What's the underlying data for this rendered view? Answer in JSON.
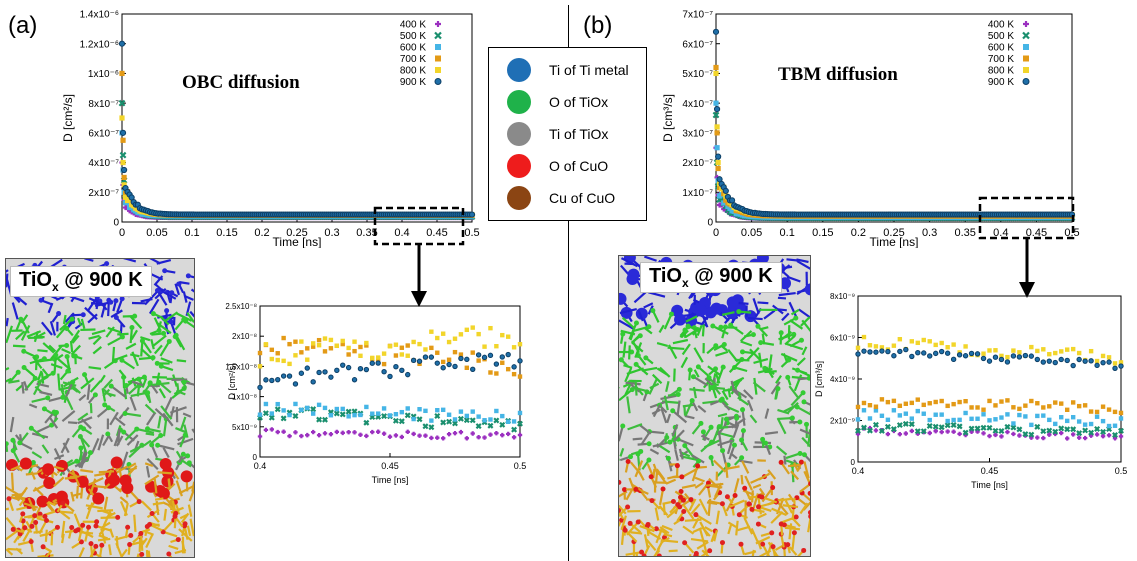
{
  "panels": {
    "a_label": "(a)",
    "b_label": "(b)"
  },
  "snapshots": {
    "a": {
      "label_main": "TiO",
      "label_sub": "x",
      "label_rest": " @ 900 K"
    },
    "b": {
      "label_main": "TiO",
      "label_sub": "x",
      "label_rest": " @ 900 K"
    }
  },
  "atom_legend": [
    {
      "label": "Ti of Ti metal",
      "color": "#1f6fb5"
    },
    {
      "label": "O of TiOx",
      "color": "#1fb24a"
    },
    {
      "label": "Ti of TiOx",
      "color": "#8a8a8a"
    },
    {
      "label": "O of CuO",
      "color": "#ee1c1c"
    },
    {
      "label": "Cu of CuO",
      "color": "#8b4513"
    }
  ],
  "series_styles": [
    {
      "name": "400 K",
      "color": "#9b30c0",
      "marker": "plus"
    },
    {
      "name": "500 K",
      "color": "#1a8f6e",
      "marker": "x"
    },
    {
      "name": "600 K",
      "color": "#45b5e6",
      "marker": "square"
    },
    {
      "name": "700 K",
      "color": "#e39a16",
      "marker": "square"
    },
    {
      "name": "800 K",
      "color": "#f2d52a",
      "marker": "square"
    },
    {
      "name": "900 K",
      "color": "#1f6fa8",
      "marker": "circle"
    }
  ],
  "chart_data": [
    {
      "id": "obc-main",
      "type": "scatter",
      "title": "OBC diffusion",
      "xlabel": "Time [ns]",
      "ylabel": "D [cm²/s]",
      "xlim": [
        0,
        0.5
      ],
      "ylim": [
        0,
        1.4e-06
      ],
      "xticks": [
        "0",
        "0.05",
        "0.1",
        "0.15",
        "0.2",
        "0.25",
        "0.3",
        "0.35",
        "0.4",
        "0.45",
        "0.5"
      ],
      "yticks": [
        "0",
        "2x10⁻⁷",
        "4x10⁻⁷",
        "6x10⁻⁷",
        "8x10⁻⁷",
        "1x10⁻⁶",
        "1.2x10⁻⁶",
        "1.4x10⁻⁶"
      ],
      "series": [
        {
          "name": "400 K",
          "initial": [
            4e-07,
            2.5e-07,
            1.5e-07
          ],
          "decay": 0.012,
          "plateau": 3e-08
        },
        {
          "name": "500 K",
          "initial": [
            8e-07,
            4.5e-07,
            2.8e-07
          ],
          "decay": 0.012,
          "plateau": 3.5e-08
        },
        {
          "name": "600 K",
          "initial": [
            6e-07,
            3.5e-07,
            2e-07
          ],
          "decay": 0.012,
          "plateau": 4e-08
        },
        {
          "name": "700 K",
          "initial": [
            1e-06,
            5.5e-07,
            3e-07
          ],
          "decay": 0.013,
          "plateau": 4.5e-08
        },
        {
          "name": "800 K",
          "initial": [
            7e-07,
            4e-07,
            2.5e-07
          ],
          "decay": 0.013,
          "plateau": 5e-08
        },
        {
          "name": "900 K",
          "initial": [
            1.2e-06,
            6e-07,
            3.5e-07
          ],
          "decay": 0.014,
          "plateau": 5e-08
        }
      ]
    },
    {
      "id": "tbm-main",
      "type": "scatter",
      "title": "TBM diffusion",
      "xlabel": "Time [ns]",
      "ylabel": "D [cm³/s]",
      "xlim": [
        0,
        0.5
      ],
      "ylim": [
        0,
        7e-07
      ],
      "xticks": [
        "0",
        "0.05",
        "0.1",
        "0.15",
        "0.2",
        "0.25",
        "0.3",
        "0.35",
        "0.4",
        "0.45",
        "0.5"
      ],
      "yticks": [
        "0",
        "1x10⁻⁷",
        "2x10⁻⁷",
        "3x10⁻⁷",
        "4x10⁻⁷",
        "5x10⁻⁷",
        "6x10⁻⁷",
        "7x10⁻⁷"
      ],
      "series": [
        {
          "name": "400 K",
          "initial": [
            2.5e-07,
            1.5e-07,
            9e-08
          ],
          "decay": 0.013,
          "plateau": 1.2e-08
        },
        {
          "name": "500 K",
          "initial": [
            3.6e-07,
            2e-07,
            1.2e-07
          ],
          "decay": 0.013,
          "plateau": 1.4e-08
        },
        {
          "name": "600 K",
          "initial": [
            4e-07,
            2.5e-07,
            1.4e-07
          ],
          "decay": 0.013,
          "plateau": 1.6e-08
        },
        {
          "name": "700 K",
          "initial": [
            5.2e-07,
            3e-07,
            1.8e-07
          ],
          "decay": 0.014,
          "plateau": 2e-08
        },
        {
          "name": "800 K",
          "initial": [
            5e-07,
            3.2e-07,
            2e-07
          ],
          "decay": 0.014,
          "plateau": 2.5e-08
        },
        {
          "name": "900 K",
          "initial": [
            6.4e-07,
            3.8e-07,
            2.2e-07
          ],
          "decay": 0.015,
          "plateau": 2.5e-08
        }
      ]
    },
    {
      "id": "obc-zoom",
      "type": "scatter",
      "xlabel": "Time [ns]",
      "ylabel": "D [cm²/s]",
      "xlim": [
        0.4,
        0.5
      ],
      "ylim": [
        0,
        2.5e-08
      ],
      "xticks": [
        "0.4",
        "0.45",
        "0.5"
      ],
      "yticks": [
        "0",
        "5x10⁻⁹",
        "1x10⁻⁸",
        "1.5x10⁻⁸",
        "2x10⁻⁸",
        "2.5x10⁻⁸"
      ],
      "series": [
        {
          "name": "400 K",
          "start": 4e-09,
          "end": 3.5e-09,
          "noise": 6e-10
        },
        {
          "name": "500 K",
          "start": 7.5e-09,
          "end": 5e-09,
          "noise": 1e-09
        },
        {
          "name": "600 K",
          "start": 8e-09,
          "end": 6.5e-09,
          "noise": 1e-09
        },
        {
          "name": "700 K",
          "start": 1.9e-08,
          "end": 1.5e-08,
          "noise": 1.8e-09
        },
        {
          "name": "800 K",
          "start": 1.7e-08,
          "end": 2e-08,
          "noise": 2e-09
        },
        {
          "name": "900 K",
          "start": 1.3e-08,
          "end": 1.65e-08,
          "noise": 1.5e-09
        }
      ]
    },
    {
      "id": "tbm-zoom",
      "type": "scatter",
      "xlabel": "Time [ns]",
      "ylabel": "D [cm³/s]",
      "xlim": [
        0.4,
        0.5
      ],
      "ylim": [
        0,
        8e-09
      ],
      "xticks": [
        "0.4",
        "0.45",
        "0.5"
      ],
      "yticks": [
        "0",
        "2x10⁻⁹",
        "4x10⁻⁹",
        "6x10⁻⁹",
        "8x10⁻⁹"
      ],
      "series": [
        {
          "name": "400 K",
          "start": 1.5e-09,
          "end": 1.2e-09,
          "noise": 1.5e-10
        },
        {
          "name": "500 K",
          "start": 1.7e-09,
          "end": 1.4e-09,
          "noise": 2e-10
        },
        {
          "name": "600 K",
          "start": 2.3e-09,
          "end": 1.9e-09,
          "noise": 2.5e-10
        },
        {
          "name": "700 K",
          "start": 2.9e-09,
          "end": 2.6e-09,
          "noise": 2.5e-10
        },
        {
          "name": "800 K",
          "start": 5.8e-09,
          "end": 5e-09,
          "noise": 3e-10
        },
        {
          "name": "900 K",
          "start": 5.4e-09,
          "end": 4.7e-09,
          "noise": 2e-10
        }
      ]
    }
  ]
}
